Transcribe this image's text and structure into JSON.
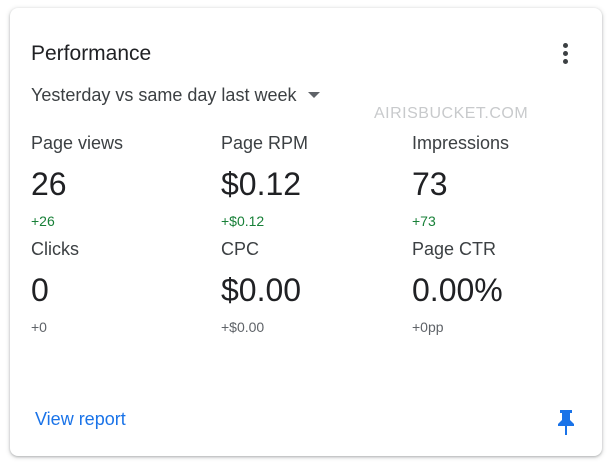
{
  "card": {
    "title": "Performance",
    "period_selector": "Yesterday vs same day last week",
    "watermark": "AIRISBUCKET.COM",
    "footer_link": "View report",
    "icons": {
      "menu": "more-vert-icon",
      "dropdown": "caret-down-icon",
      "pin": "pin-icon"
    }
  },
  "metrics": [
    {
      "label": "Page views",
      "value": "26",
      "change": "+26",
      "change_color": "#188038"
    },
    {
      "label": "Page RPM",
      "value": "$0.12",
      "change": "+$0.12",
      "change_color": "#188038"
    },
    {
      "label": "Impressions",
      "value": "73",
      "change": "+73",
      "change_color": "#188038"
    },
    {
      "label": "Clicks",
      "value": "0",
      "change": "+0",
      "change_color": "#5f6368"
    },
    {
      "label": "CPC",
      "value": "$0.00",
      "change": "+$0.00",
      "change_color": "#5f6368"
    },
    {
      "label": "Page CTR",
      "value": "0.00%",
      "change": "+0pp",
      "change_color": "#5f6368"
    }
  ],
  "colors": {
    "accent": "#1a73e8",
    "positive": "#188038",
    "neutral": "#5f6368"
  }
}
